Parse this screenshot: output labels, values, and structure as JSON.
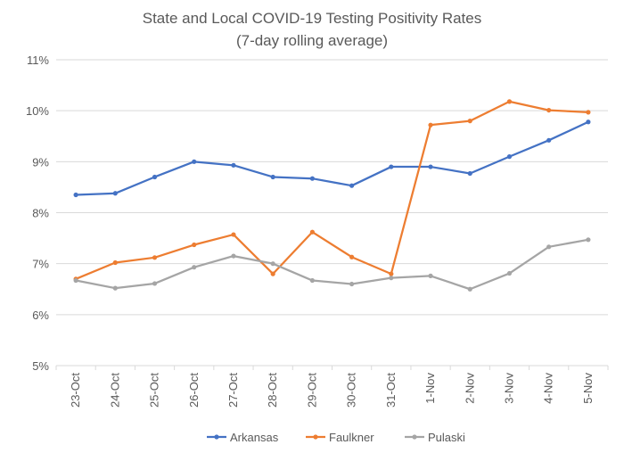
{
  "chart_data": {
    "type": "line",
    "title": "State and Local COVID-19 Testing Positivity Rates",
    "subtitle": "(7-day rolling average)",
    "xlabel": "",
    "ylabel": "",
    "ylim": [
      5,
      11
    ],
    "yticks": [
      5,
      6,
      7,
      8,
      9,
      10,
      11
    ],
    "ytick_labels": [
      "5%",
      "6%",
      "7%",
      "8%",
      "9%",
      "10%",
      "11%"
    ],
    "grid": true,
    "legend_position": "bottom",
    "categories": [
      "23-Oct",
      "24-Oct",
      "25-Oct",
      "26-Oct",
      "27-Oct",
      "28-Oct",
      "29-Oct",
      "30-Oct",
      "31-Oct",
      "1-Nov",
      "2-Nov",
      "3-Nov",
      "4-Nov",
      "5-Nov"
    ],
    "series": [
      {
        "name": "Arkansas",
        "color": "#4472C4",
        "values": [
          8.35,
          8.38,
          8.7,
          9.0,
          8.93,
          8.7,
          8.67,
          8.53,
          8.9,
          8.9,
          8.77,
          9.1,
          9.42,
          9.78
        ]
      },
      {
        "name": "Faulkner",
        "color": "#ED7D31",
        "values": [
          6.7,
          7.02,
          7.12,
          7.37,
          7.57,
          6.8,
          7.62,
          7.13,
          6.8,
          9.72,
          9.8,
          10.18,
          10.01,
          9.97
        ]
      },
      {
        "name": "Pulaski",
        "color": "#A5A5A5",
        "values": [
          6.67,
          6.52,
          6.61,
          6.93,
          7.15,
          7.0,
          6.67,
          6.6,
          6.72,
          6.76,
          6.5,
          6.81,
          7.33,
          7.47
        ]
      }
    ]
  },
  "colors": {
    "gridline": "#D9D9D9",
    "axis_text": "#595959",
    "background": "#FFFFFF"
  }
}
